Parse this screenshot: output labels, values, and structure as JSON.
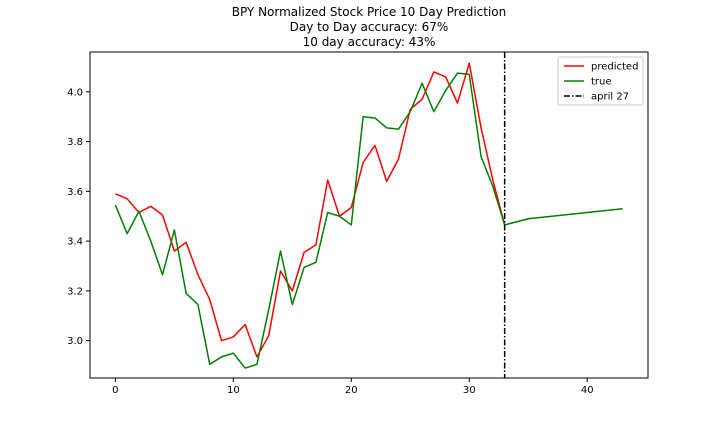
{
  "chart_data": {
    "type": "line",
    "title_lines": [
      "BPY Normalized Stock Price 10 Day Prediction",
      "Day to Day accuracy: 67%",
      "10 day accuracy: 43%"
    ],
    "xlabel": "",
    "ylabel": "",
    "xlim": [
      -2.15,
      45.15
    ],
    "ylim": [
      2.85,
      4.16
    ],
    "x_ticks": [
      0,
      10,
      20,
      30,
      40
    ],
    "y_ticks": [
      3.0,
      3.2,
      3.4,
      3.6,
      3.8,
      4.0
    ],
    "y_tick_labels": [
      "3.0",
      "3.2",
      "3.4",
      "3.6",
      "3.8",
      "4.0"
    ],
    "grid": false,
    "legend_position": "top-right",
    "series": [
      {
        "name": "predicted",
        "color": "#ff0000",
        "x": [
          0,
          1,
          2,
          3,
          4,
          5,
          6,
          7,
          8,
          9,
          10,
          11,
          12,
          13,
          14,
          15,
          16,
          17,
          18,
          19,
          20,
          21,
          22,
          23,
          24,
          25,
          26,
          27,
          28,
          29,
          30,
          31,
          32,
          33
        ],
        "values": [
          3.59,
          3.57,
          3.515,
          3.54,
          3.505,
          3.36,
          3.395,
          3.265,
          3.165,
          3.0,
          3.015,
          3.065,
          2.935,
          3.02,
          3.28,
          3.2,
          3.355,
          3.385,
          3.645,
          3.5,
          3.535,
          3.715,
          3.785,
          3.64,
          3.73,
          3.93,
          3.97,
          4.08,
          4.06,
          3.955,
          4.115,
          3.855,
          3.645,
          3.465
        ]
      },
      {
        "name": "true",
        "color": "#008000",
        "x": [
          0,
          1,
          2,
          3,
          4,
          5,
          6,
          7,
          8,
          9,
          10,
          11,
          12,
          13,
          14,
          15,
          16,
          17,
          18,
          19,
          20,
          21,
          22,
          23,
          24,
          25,
          26,
          27,
          28,
          29,
          30,
          31,
          32,
          33,
          35,
          37,
          39,
          41,
          43
        ],
        "values": [
          3.545,
          3.43,
          3.52,
          3.4,
          3.265,
          3.445,
          3.19,
          3.145,
          2.905,
          2.935,
          2.95,
          2.89,
          2.905,
          3.125,
          3.36,
          3.145,
          3.295,
          3.315,
          3.515,
          3.5,
          3.465,
          3.9,
          3.895,
          3.855,
          3.85,
          3.92,
          4.035,
          3.92,
          4.005,
          4.075,
          4.07,
          3.74,
          3.62,
          3.465,
          3.49,
          3.5,
          3.51,
          3.52,
          3.53
        ]
      }
    ],
    "vline": {
      "name": "april 27",
      "x": 33,
      "color": "#000000",
      "style": "dash-dot"
    }
  }
}
